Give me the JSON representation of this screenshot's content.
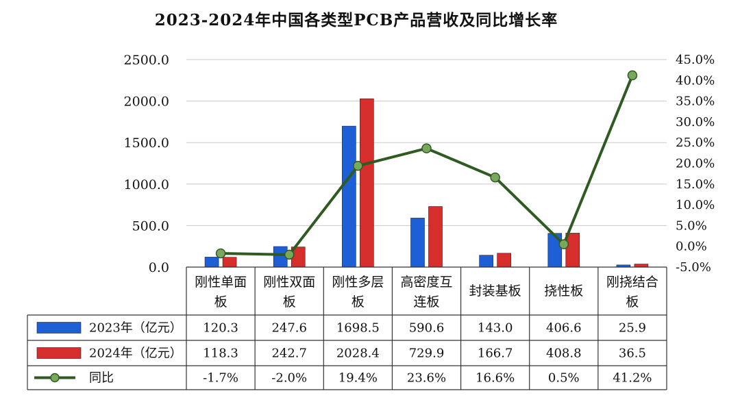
{
  "chart_data": {
    "type": "bar",
    "title": "2023-2024年中国各类型PCB产品营收及同比增长率",
    "categories": [
      [
        "刚性单面",
        "板"
      ],
      [
        "刚性双面",
        "板"
      ],
      [
        "刚性多层",
        "板"
      ],
      [
        "高密度互",
        "连板"
      ],
      [
        "封装基板"
      ],
      [
        "挠性板"
      ],
      [
        "刚挠结合",
        "板"
      ]
    ],
    "series": [
      {
        "name": "2023年（亿元）",
        "values": [
          120.3,
          247.6,
          1698.5,
          590.6,
          143.0,
          406.6,
          25.9
        ],
        "labels": [
          "120.3",
          "247.6",
          "1698.5",
          "590.6",
          "143.0",
          "406.6",
          "25.9"
        ],
        "color": "#1f5fd6",
        "axis": "left",
        "kind": "bar"
      },
      {
        "name": "2024年（亿元）",
        "values": [
          118.3,
          242.7,
          2028.4,
          729.9,
          166.7,
          408.8,
          36.5
        ],
        "labels": [
          "118.3",
          "242.7",
          "2028.4",
          "729.9",
          "166.7",
          "408.8",
          "36.5"
        ],
        "color": "#d62d2d",
        "axis": "left",
        "kind": "bar"
      },
      {
        "name": "同比",
        "values": [
          -1.7,
          -2.0,
          19.4,
          23.6,
          16.6,
          0.5,
          41.2
        ],
        "labels": [
          "-1.7%",
          "-2.0%",
          "19.4%",
          "23.6%",
          "16.6%",
          "0.5%",
          "41.2%"
        ],
        "color": "#2f5a22",
        "marker_color": "#79a85c",
        "axis": "right",
        "kind": "line"
      }
    ],
    "y_left": {
      "min": 0,
      "max": 2500,
      "ticks": [
        "0.0",
        "500.0",
        "1000.0",
        "1500.0",
        "2000.0",
        "2500.0"
      ]
    },
    "y_right": {
      "min": -5,
      "max": 45,
      "ticks": [
        "-5.0%",
        "0.0%",
        "5.0%",
        "10.0%",
        "15.0%",
        "20.0%",
        "25.0%",
        "30.0%",
        "35.0%",
        "40.0%",
        "45.0%"
      ]
    },
    "grid": true,
    "legend": "data-table-left"
  }
}
